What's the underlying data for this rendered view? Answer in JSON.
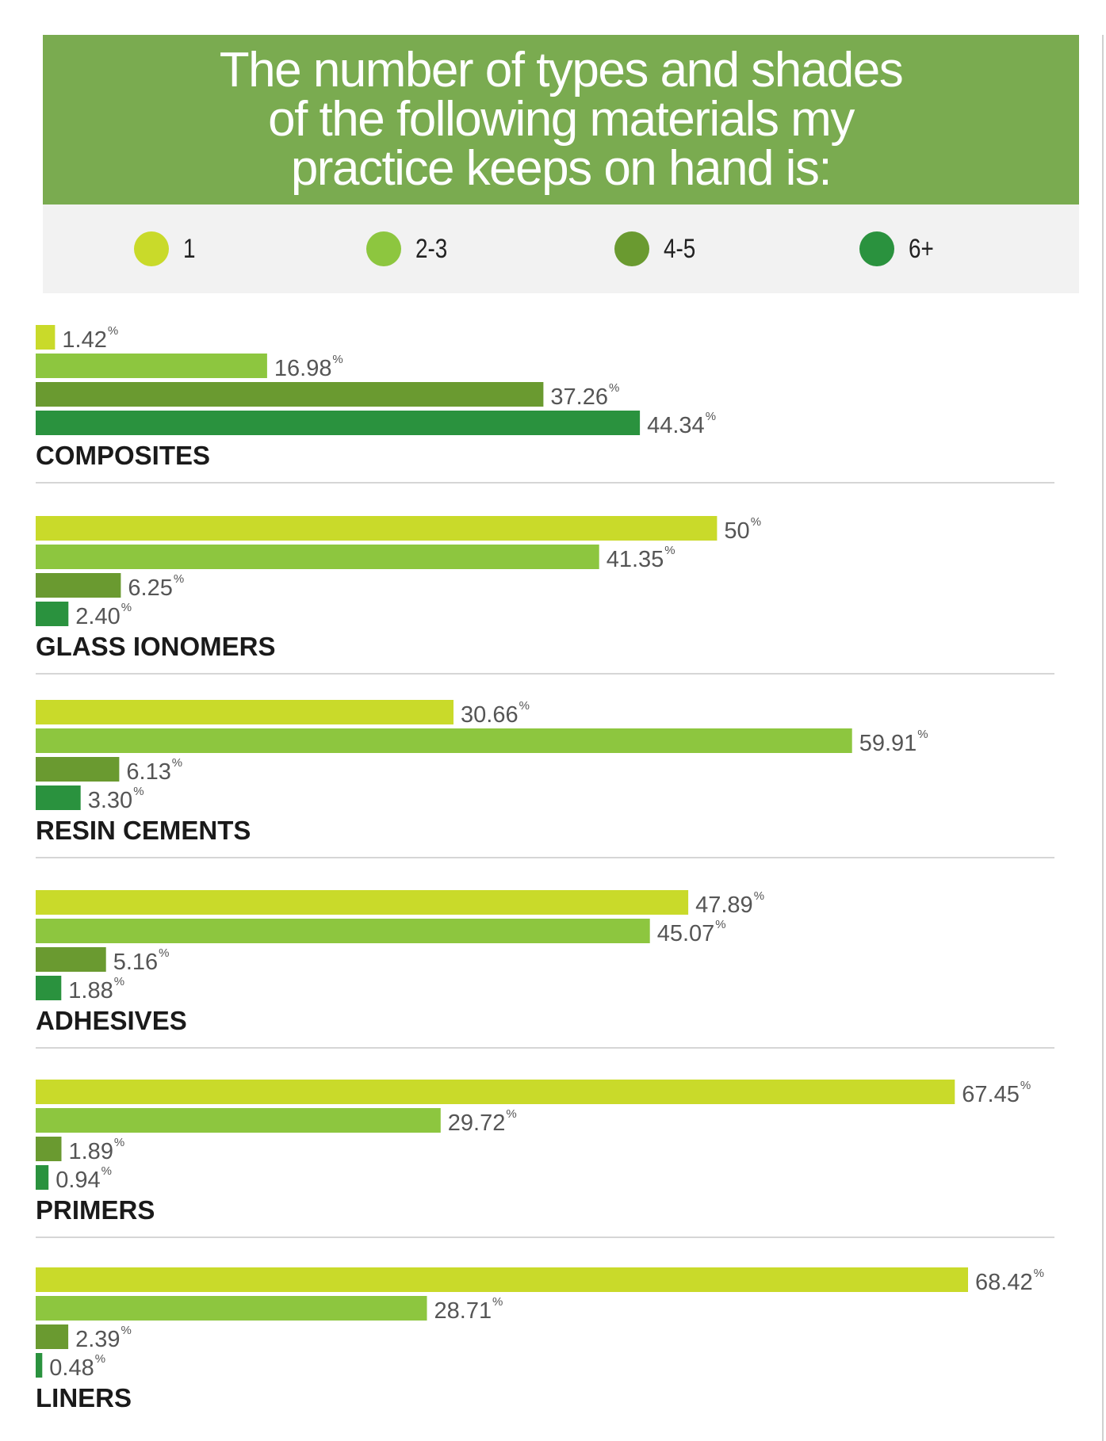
{
  "chart_data": {
    "type": "bar",
    "orientation": "horizontal",
    "title": "The number of types and shades\nof the following materials my\npractice keeps on hand is:",
    "unit": "%",
    "categories": [
      "COMPOSITES",
      "GLASS IONOMERS",
      "RESIN CEMENTS",
      "ADHESIVES",
      "PRIMERS",
      "LINERS"
    ],
    "series": [
      {
        "name": "1",
        "color": "#c9da2a",
        "values": [
          1.42,
          50,
          30.66,
          47.89,
          67.45,
          68.42
        ],
        "labels": [
          "1.42",
          "50",
          "30.66",
          "47.89",
          "67.45",
          "68.42"
        ]
      },
      {
        "name": "2-3",
        "color": "#8dc63f",
        "values": [
          16.98,
          41.35,
          59.91,
          45.07,
          29.72,
          28.71
        ],
        "labels": [
          "16.98",
          "41.35",
          "59.91",
          "45.07",
          "29.72",
          "28.71"
        ]
      },
      {
        "name": "4-5",
        "color": "#6a9a30",
        "values": [
          37.26,
          6.25,
          6.13,
          5.16,
          1.89,
          2.39
        ],
        "labels": [
          "37.26",
          "6.25",
          "6.13",
          "5.16",
          "1.89",
          "2.39"
        ]
      },
      {
        "name": "6+",
        "color": "#2a923e",
        "values": [
          44.34,
          2.4,
          3.3,
          1.88,
          0.94,
          0.48
        ],
        "labels": [
          "44.34",
          "2.40",
          "3.30",
          "1.88",
          "0.94",
          "0.48"
        ]
      }
    ],
    "xlim": [
      0,
      75
    ],
    "legend": "top",
    "grid": false
  },
  "legend": {
    "items": [
      {
        "label": "1",
        "color": "#c9da2a"
      },
      {
        "label": "2-3",
        "color": "#8dc63f"
      },
      {
        "label": "4-5",
        "color": "#6a9a30"
      },
      {
        "label": "6+",
        "color": "#2a923e"
      }
    ]
  },
  "colors": {
    "header_bg": "#7aab50",
    "legend_bg": "#f2f2f2"
  }
}
